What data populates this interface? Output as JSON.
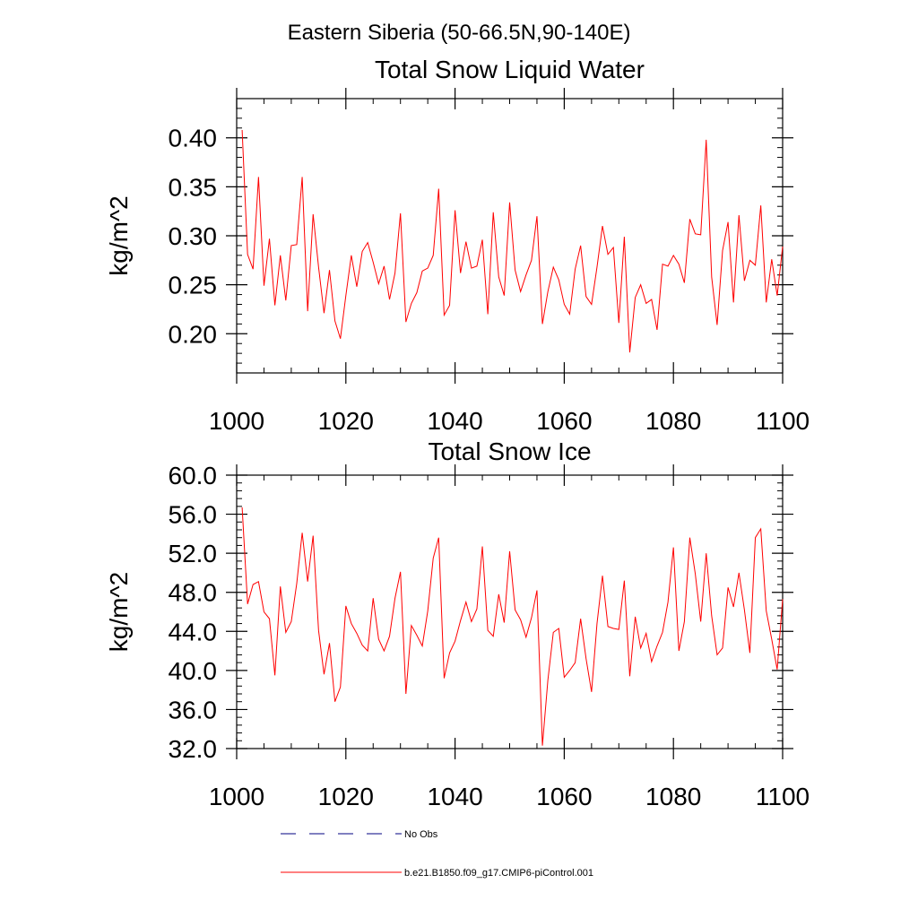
{
  "figure": {
    "title": "Eastern Siberia (50-66.5N,90-140E)"
  },
  "colors": {
    "model": "#ff0000",
    "obs": "#000080",
    "axis": "#000000"
  },
  "chart_data": [
    {
      "type": "line",
      "title": "Total Snow Liquid Water",
      "xlabel": "",
      "ylabel": "kg/m^2",
      "xlim": [
        1000,
        1100
      ],
      "ylim": [
        0.16,
        0.44
      ],
      "xticks": [
        1000,
        1020,
        1040,
        1060,
        1080,
        1100
      ],
      "xtick_labels": [
        "1000",
        "1020",
        "1040",
        "1060",
        "1080",
        "1100"
      ],
      "yticks": [
        0.2,
        0.25,
        0.3,
        0.35,
        0.4
      ],
      "ytick_labels": [
        "0.20",
        "0.25",
        "0.30",
        "0.35",
        "0.40"
      ],
      "x_start": 1001,
      "series": [
        {
          "name": "b.e21.B1850.f09_g17.CMIP6-piControl.001",
          "values": [
            0.408,
            0.281,
            0.266,
            0.36,
            0.249,
            0.297,
            0.229,
            0.28,
            0.234,
            0.29,
            0.291,
            0.36,
            0.223,
            0.322,
            0.268,
            0.221,
            0.265,
            0.213,
            0.195,
            0.239,
            0.28,
            0.248,
            0.284,
            0.293,
            0.273,
            0.251,
            0.269,
            0.235,
            0.262,
            0.323,
            0.212,
            0.231,
            0.242,
            0.264,
            0.267,
            0.28,
            0.348,
            0.219,
            0.229,
            0.326,
            0.262,
            0.294,
            0.267,
            0.269,
            0.296,
            0.22,
            0.324,
            0.258,
            0.239,
            0.334,
            0.265,
            0.243,
            0.26,
            0.275,
            0.32,
            0.21,
            0.243,
            0.268,
            0.255,
            0.23,
            0.22,
            0.266,
            0.29,
            0.238,
            0.23,
            0.268,
            0.31,
            0.281,
            0.288,
            0.211,
            0.299,
            0.181,
            0.237,
            0.25,
            0.231,
            0.235,
            0.204,
            0.271,
            0.269,
            0.28,
            0.271,
            0.252,
            0.317,
            0.302,
            0.301,
            0.398,
            0.258,
            0.209,
            0.285,
            0.314,
            0.232,
            0.321,
            0.254,
            0.275,
            0.27,
            0.331,
            0.232,
            0.276,
            0.239,
            0.289
          ]
        }
      ]
    },
    {
      "type": "line",
      "title": "Total Snow Ice",
      "xlabel": "",
      "ylabel": "kg/m^2",
      "xlim": [
        1000,
        1100
      ],
      "ylim": [
        32,
        60
      ],
      "xticks": [
        1000,
        1020,
        1040,
        1060,
        1080,
        1100
      ],
      "xtick_labels": [
        "1000",
        "1020",
        "1040",
        "1060",
        "1080",
        "1100"
      ],
      "yticks": [
        32,
        36,
        40,
        44,
        48,
        52,
        56,
        60
      ],
      "ytick_labels": [
        "32.0",
        "36.0",
        "40.0",
        "44.0",
        "48.0",
        "52.0",
        "56.0",
        "60.0"
      ],
      "x_start": 1001,
      "series": [
        {
          "name": "b.e21.B1850.f09_g17.CMIP6-piControl.001",
          "values": [
            56.7,
            46.8,
            48.8,
            49.1,
            46.0,
            45.3,
            39.5,
            48.6,
            43.9,
            45.0,
            48.9,
            54.1,
            49.1,
            53.8,
            44.1,
            39.6,
            42.8,
            36.8,
            38.3,
            46.6,
            44.8,
            43.8,
            42.6,
            42.0,
            47.4,
            43.2,
            42.0,
            43.5,
            47.4,
            50.1,
            37.6,
            44.6,
            43.6,
            42.5,
            46.1,
            51.5,
            53.6,
            39.2,
            41.8,
            43.0,
            45.1,
            47.0,
            45.0,
            46.3,
            52.7,
            44.1,
            43.5,
            47.8,
            44.9,
            52.2,
            46.2,
            45.2,
            43.4,
            45.4,
            48.2,
            32.3,
            39.0,
            43.9,
            44.3,
            39.3,
            40.0,
            40.8,
            45.3,
            41.2,
            37.8,
            44.8,
            49.7,
            44.5,
            44.3,
            44.2,
            49.2,
            39.4,
            45.5,
            42.3,
            43.8,
            40.9,
            42.5,
            43.9,
            47.0,
            52.6,
            42.0,
            45.0,
            53.6,
            49.9,
            45.0,
            52.0,
            45.6,
            41.6,
            42.3,
            48.5,
            46.5,
            50.0,
            46.2,
            41.8,
            53.6,
            54.5,
            46.1,
            43.2,
            40.1,
            47.3
          ]
        }
      ]
    }
  ],
  "legend": [
    {
      "label": "No Obs",
      "style": "dashed",
      "color": "#000080"
    },
    {
      "label": "b.e21.B1850.f09_g17.CMIP6-piControl.001",
      "style": "solid",
      "color": "#ff0000"
    }
  ]
}
